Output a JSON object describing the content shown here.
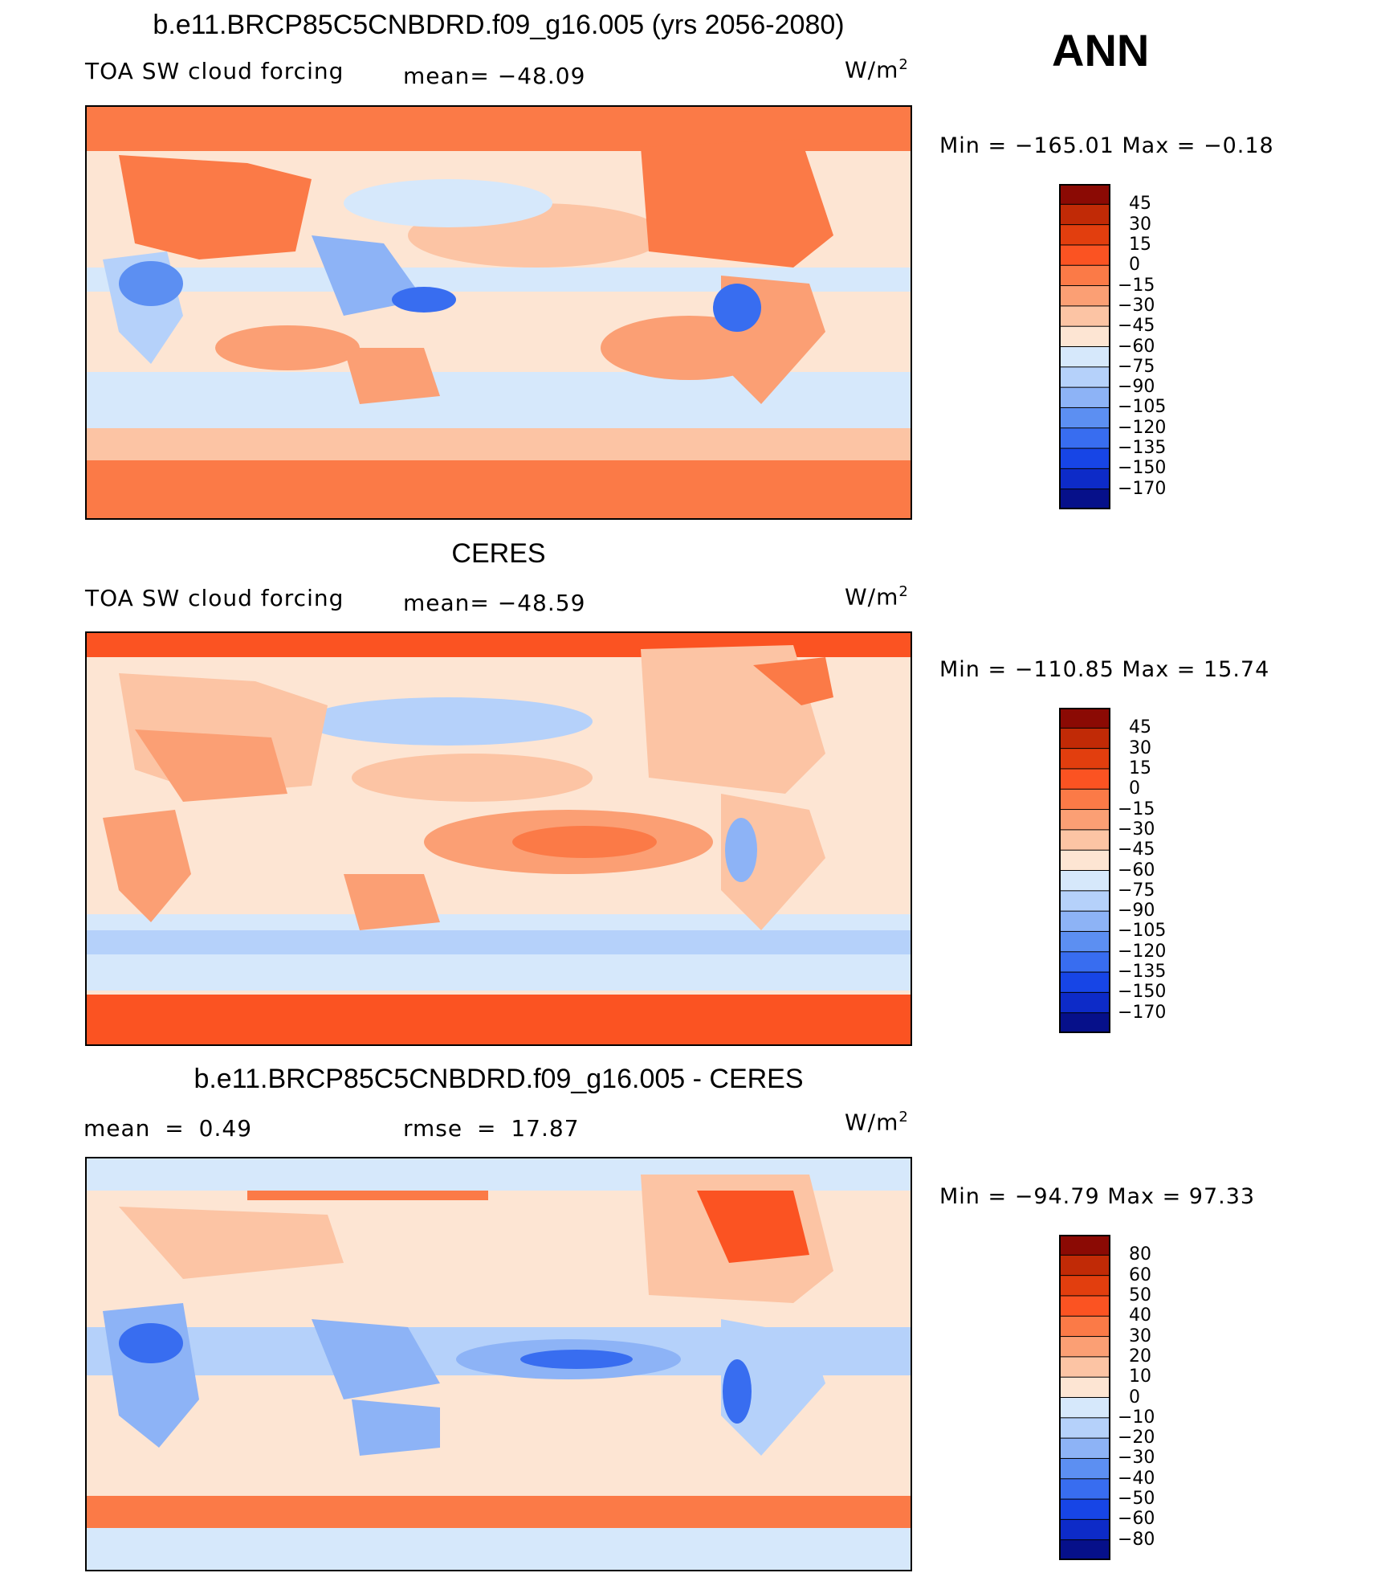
{
  "season": "ANN",
  "units_text": "W/m",
  "units_sup": "2",
  "colors": {
    "ocean_blue": "#d6e8fb",
    "ocean_pale": "#fde5d3",
    "land_orange": "#f9885a",
    "polar": "#fb7a47",
    "deep_blue": "#2a58e8",
    "mid_blue": "#8db3f6"
  },
  "panels": [
    {
      "title": "b.e11.BRCP85C5CNBDRD.f09_g16.005 (yrs 2056-2080)",
      "left_label": "TOA SW cloud forcing",
      "stat_label": "mean= −48.09",
      "min_max": "Min = −165.01 Max = −0.18"
    },
    {
      "title": "CERES",
      "left_label": "TOA SW cloud forcing",
      "stat_label": "mean= −48.59",
      "min_max": "Min = −110.85 Max = 15.74"
    },
    {
      "title": "b.e11.BRCP85C5CNBDRD.f09_g16.005 - CERES",
      "left_label": "mean = 0.49",
      "stat_label": "rmse = 17.87",
      "min_max": "Min = −94.79 Max = 97.33"
    }
  ],
  "chart_data": [
    {
      "type": "heatmap",
      "title": "b.e11.BRCP85C5CNBDRD.f09_g16.005 (yrs 2056-2080)",
      "subtitle": "TOA SW cloud forcing",
      "mean": -48.09,
      "min": -165.01,
      "max": -0.18,
      "units": "W/m2",
      "colorbar_levels": [
        45,
        30,
        15,
        0,
        -15,
        -30,
        -45,
        -60,
        -75,
        -90,
        -105,
        -120,
        -135,
        -150,
        -170
      ],
      "colorbar_labels": [
        "45",
        "30",
        "15",
        "0",
        "−15",
        "−30",
        "−45",
        "−60",
        "−75",
        "−90",
        "−105",
        "−120",
        "−135",
        "−150",
        "−170"
      ],
      "colorbar_colors": [
        "#8b0a04",
        "#c12a06",
        "#e23e0e",
        "#fb5322",
        "#fb7a47",
        "#fb9f74",
        "#fcc4a4",
        "#fde5d3",
        "#d6e8fb",
        "#b5d1fa",
        "#8db3f6",
        "#5c8ff2",
        "#386df0",
        "#1745e6",
        "#0d2bc8",
        "#06108a"
      ]
    },
    {
      "type": "heatmap",
      "title": "CERES",
      "subtitle": "TOA SW cloud forcing",
      "mean": -48.59,
      "min": -110.85,
      "max": 15.74,
      "units": "W/m2",
      "colorbar_levels": [
        45,
        30,
        15,
        0,
        -15,
        -30,
        -45,
        -60,
        -75,
        -90,
        -105,
        -120,
        -135,
        -150,
        -170
      ],
      "colorbar_labels": [
        "45",
        "30",
        "15",
        "0",
        "−15",
        "−30",
        "−45",
        "−60",
        "−75",
        "−90",
        "−105",
        "−120",
        "−135",
        "−150",
        "−170"
      ],
      "colorbar_colors": [
        "#8b0a04",
        "#c12a06",
        "#e23e0e",
        "#fb5322",
        "#fb7a47",
        "#fb9f74",
        "#fcc4a4",
        "#fde5d3",
        "#d6e8fb",
        "#b5d1fa",
        "#8db3f6",
        "#5c8ff2",
        "#386df0",
        "#1745e6",
        "#0d2bc8",
        "#06108a"
      ]
    },
    {
      "type": "heatmap",
      "title": "b.e11.BRCP85C5CNBDRD.f09_g16.005 - CERES",
      "mean": 0.49,
      "rmse": 17.87,
      "min": -94.79,
      "max": 97.33,
      "units": "W/m2",
      "colorbar_levels": [
        80,
        60,
        50,
        40,
        30,
        20,
        10,
        0,
        -10,
        -20,
        -30,
        -40,
        -50,
        -60,
        -80
      ],
      "colorbar_labels": [
        "80",
        "60",
        "50",
        "40",
        "30",
        "20",
        "10",
        "0",
        "−10",
        "−20",
        "−30",
        "−40",
        "−50",
        "−60",
        "−80"
      ],
      "colorbar_colors": [
        "#8b0a04",
        "#c12a06",
        "#e23e0e",
        "#fb5322",
        "#fb7a47",
        "#fb9f74",
        "#fcc4a4",
        "#fde5d3",
        "#d6e8fb",
        "#b5d1fa",
        "#8db3f6",
        "#5c8ff2",
        "#386df0",
        "#1745e6",
        "#0d2bc8",
        "#06108a"
      ]
    }
  ]
}
